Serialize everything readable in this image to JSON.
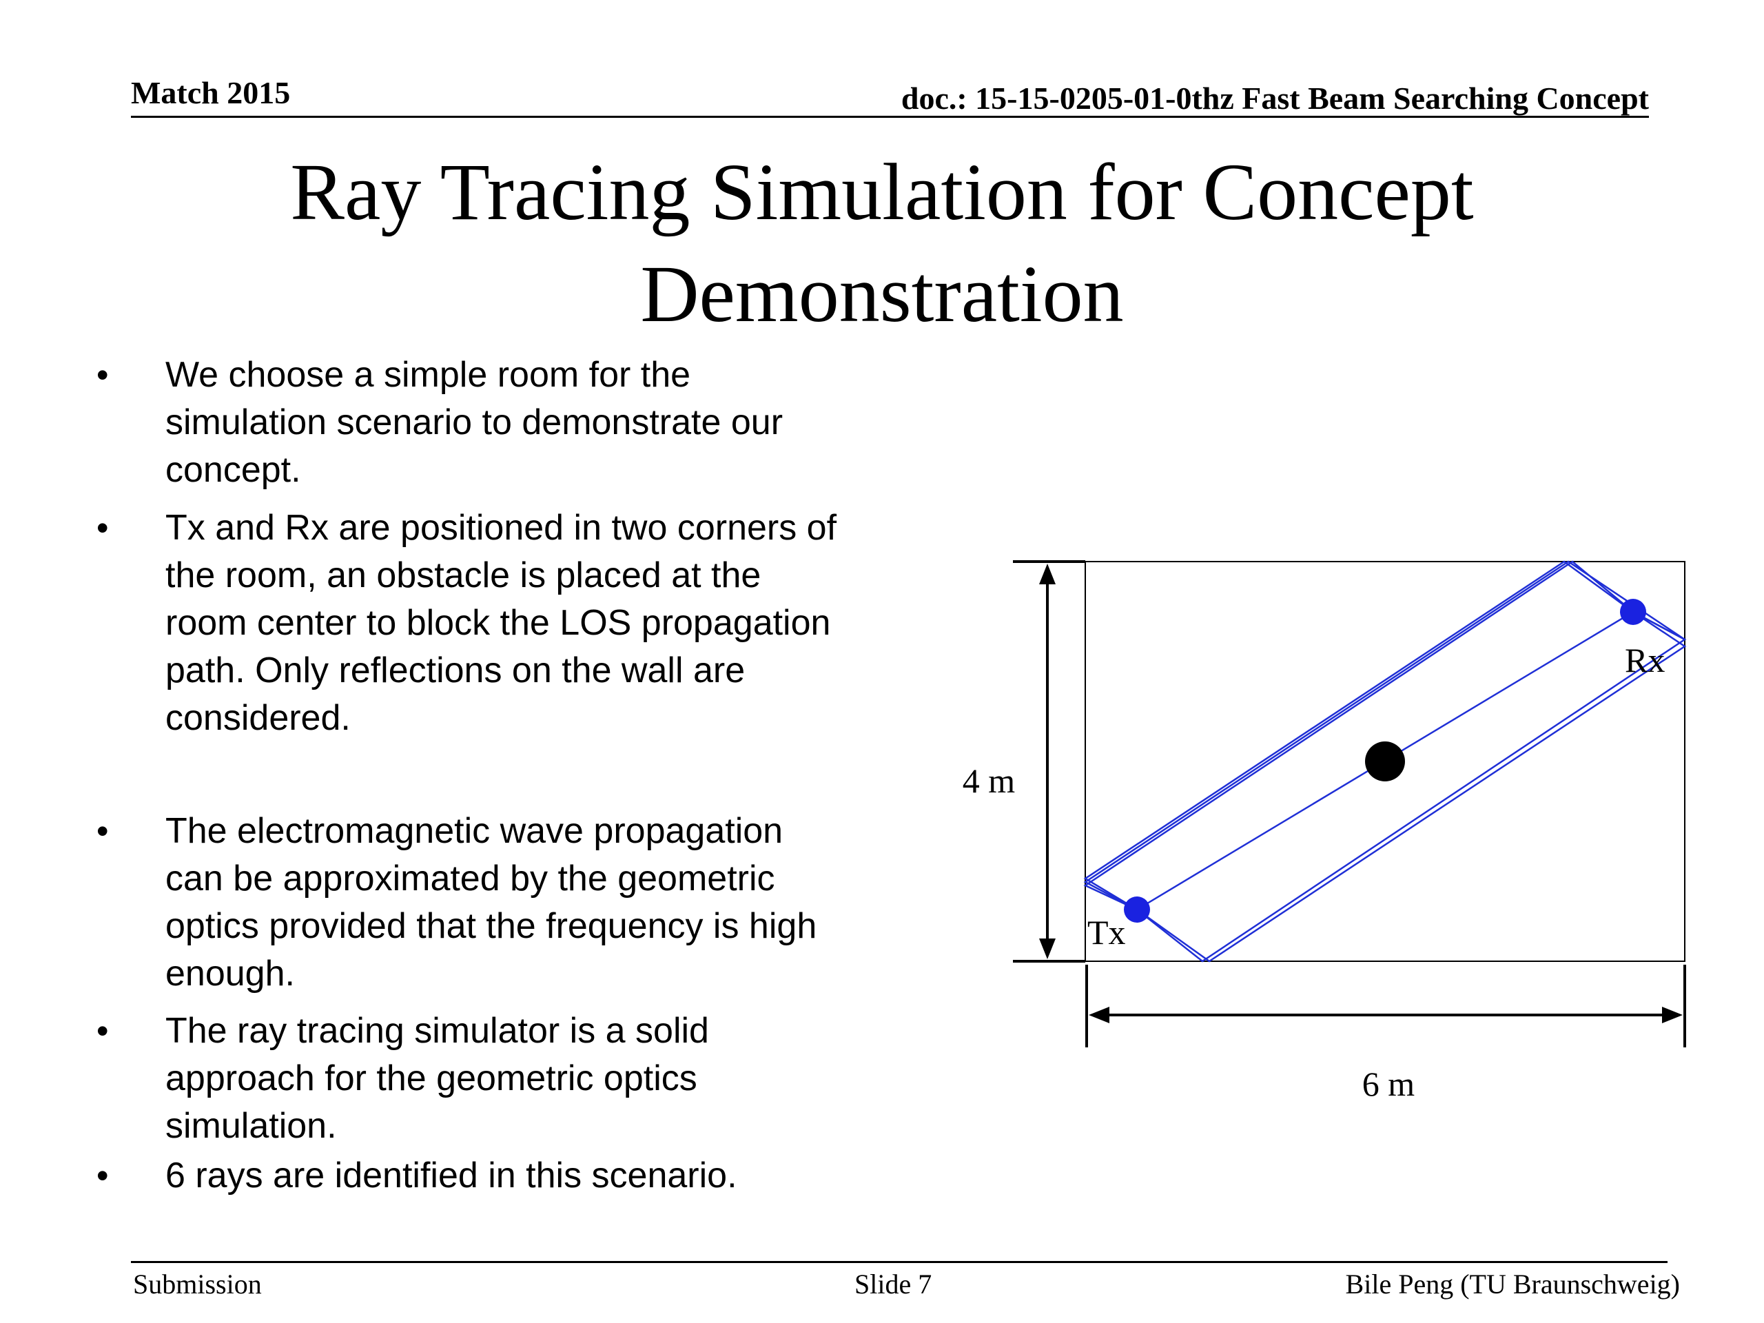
{
  "header": {
    "date": "Match 2015",
    "doc": "doc.: 15-15-0205-01-0thz Fast Beam Searching Concept"
  },
  "title": {
    "line1": "Ray Tracing Simulation for Concept",
    "line2": "Demonstration"
  },
  "bullets": [
    {
      "lines": [
        "We choose a simple room for the",
        "simulation scenario to demonstrate our",
        "concept."
      ]
    },
    {
      "lines": [
        "Tx and Rx are positioned in two corners of",
        "the room, an obstacle is placed at the",
        "room center to block the LOS propagation",
        "path. Only reflections on the wall are",
        "considered."
      ]
    },
    {
      "lines": [
        "The electromagnetic wave propagation",
        "can be approximated by the geometric",
        "optics provided that the frequency is high",
        "enough."
      ]
    },
    {
      "lines": [
        "The ray tracing simulator is a solid",
        "approach for the geometric optics",
        "simulation."
      ]
    },
    {
      "lines": [
        "6 rays are identified in this scenario."
      ]
    }
  ],
  "bullet_glyph": "•",
  "diagram": {
    "height_label": "4 m",
    "width_label": "6 m",
    "tx_label": "Tx",
    "rx_label": "Rx",
    "ray_color": "#1f2fd6",
    "node_color": "#1a22e0",
    "obstacle_color": "#000000"
  },
  "footer": {
    "left": "Submission",
    "center": "Slide 7",
    "right": "Bile Peng (TU Braunschweig)"
  }
}
